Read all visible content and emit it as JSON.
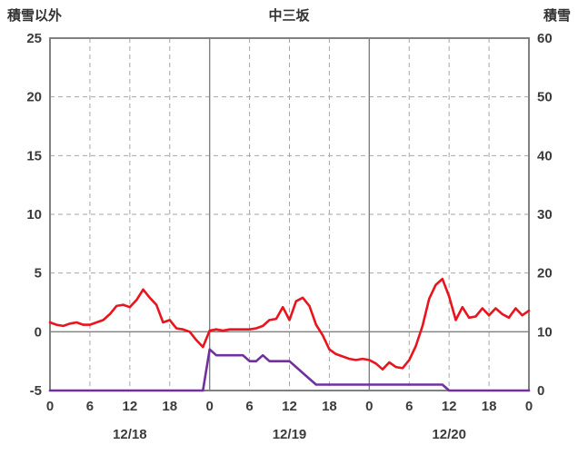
{
  "header": {
    "left_axis_title": "積雪以外",
    "title": "中三坂",
    "right_axis_title": "積雪"
  },
  "chart_data": {
    "type": "line",
    "title": "中三坂",
    "x_hours_total": 72,
    "left_axis": {
      "label": "積雪以外",
      "min": -5,
      "max": 25,
      "ticks": [
        -5,
        0,
        5,
        10,
        15,
        20,
        25
      ]
    },
    "right_axis": {
      "label": "積雪",
      "min": 0,
      "max": 60,
      "ticks": [
        0,
        10,
        20,
        30,
        40,
        50,
        60
      ]
    },
    "x_tick_hours": [
      0,
      6,
      12,
      18,
      24,
      30,
      36,
      42,
      48,
      54,
      60,
      66,
      72
    ],
    "x_tick_labels": [
      "0",
      "6",
      "12",
      "18",
      "0",
      "6",
      "12",
      "18",
      "0",
      "6",
      "12",
      "18",
      "0"
    ],
    "date_labels": [
      {
        "label": "12/18",
        "center_hour": 12
      },
      {
        "label": "12/19",
        "center_hour": 36
      },
      {
        "label": "12/20",
        "center_hour": 60
      }
    ],
    "grid": {
      "border_color": "#808080",
      "solid_color": "#808080",
      "dashed_color": "#a6a6a6"
    },
    "series": [
      {
        "name": "積雪",
        "axis": "right",
        "color": "#7030a0",
        "x": [
          0,
          1,
          2,
          3,
          4,
          5,
          6,
          7,
          8,
          9,
          10,
          11,
          12,
          13,
          14,
          15,
          16,
          17,
          18,
          19,
          20,
          21,
          22,
          23,
          24,
          25,
          26,
          27,
          28,
          29,
          30,
          31,
          32,
          33,
          34,
          35,
          36,
          37,
          38,
          39,
          40,
          41,
          42,
          43,
          44,
          45,
          46,
          47,
          48,
          49,
          50,
          51,
          52,
          53,
          54,
          55,
          56,
          57,
          58,
          59,
          60,
          61,
          62,
          63,
          64,
          65,
          66,
          67,
          68,
          69,
          70,
          71,
          72
        ],
        "values": [
          0,
          0,
          0,
          0,
          0,
          0,
          0,
          0,
          0,
          0,
          0,
          0,
          0,
          0,
          0,
          0,
          0,
          0,
          0,
          0,
          0,
          0,
          0,
          0,
          7,
          6,
          6,
          6,
          6,
          6,
          5,
          5,
          6,
          5,
          5,
          5,
          5,
          4,
          3,
          2,
          1,
          1,
          1,
          1,
          1,
          1,
          1,
          1,
          1,
          1,
          1,
          1,
          1,
          1,
          1,
          1,
          1,
          1,
          1,
          1,
          0,
          0,
          0,
          0,
          0,
          0,
          0,
          0,
          0,
          0,
          0,
          0,
          0
        ]
      },
      {
        "name": "積雪以外",
        "axis": "left",
        "color": "#e8141e",
        "x": [
          0,
          1,
          2,
          3,
          4,
          5,
          6,
          7,
          8,
          9,
          10,
          11,
          12,
          13,
          14,
          15,
          16,
          17,
          18,
          19,
          20,
          21,
          22,
          23,
          24,
          25,
          26,
          27,
          28,
          29,
          30,
          31,
          32,
          33,
          34,
          35,
          36,
          37,
          38,
          39,
          40,
          41,
          42,
          43,
          44,
          45,
          46,
          47,
          48,
          49,
          50,
          51,
          52,
          53,
          54,
          55,
          56,
          57,
          58,
          59,
          60,
          61,
          62,
          63,
          64,
          65,
          66,
          67,
          68,
          69,
          70,
          71,
          72
        ],
        "values": [
          0.8,
          0.6,
          0.5,
          0.7,
          0.8,
          0.6,
          0.6,
          0.8,
          1.0,
          1.5,
          2.2,
          2.3,
          2.1,
          2.7,
          3.6,
          2.9,
          2.3,
          0.8,
          1.0,
          0.3,
          0.2,
          0.0,
          -0.7,
          -1.3,
          0.1,
          0.2,
          0.1,
          0.2,
          0.2,
          0.2,
          0.2,
          0.3,
          0.5,
          1.0,
          1.1,
          2.1,
          1.0,
          2.6,
          2.9,
          2.2,
          0.6,
          -0.3,
          -1.5,
          -1.9,
          -2.1,
          -2.3,
          -2.4,
          -2.3,
          -2.4,
          -2.7,
          -3.2,
          -2.6,
          -3.0,
          -3.1,
          -2.4,
          -1.2,
          0.5,
          2.8,
          4.0,
          4.5,
          3.0,
          1.0,
          2.1,
          1.2,
          1.3,
          2.0,
          1.4,
          2.0,
          1.5,
          1.2,
          2.0,
          1.4,
          1.8
        ]
      }
    ]
  }
}
